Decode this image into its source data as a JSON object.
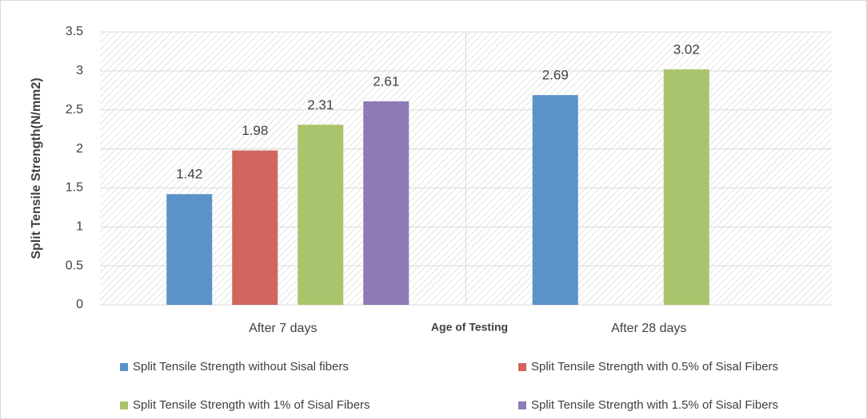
{
  "chart_data": {
    "type": "bar",
    "categories": [
      "After 7 days",
      "After 28 days"
    ],
    "series": [
      {
        "name": "Split Tensile Strength without Sisal fibers",
        "color": "#5b93c9",
        "values": [
          1.42,
          2.69
        ]
      },
      {
        "name": "Split Tensile Strength with 0.5% of Sisal Fibers",
        "color": "#d0665e",
        "values": [
          1.98,
          null
        ]
      },
      {
        "name": "Split Tensile Strength with 1% of Sisal Fibers",
        "color": "#a9c46c",
        "values": [
          2.31,
          3.02
        ]
      },
      {
        "name": "Split Tensile Strength with 1.5% of Sisal Fibers",
        "color": "#8e7ab5",
        "values": [
          2.61,
          null
        ]
      }
    ],
    "x_label": "Age of Testing",
    "y_label": "Split Tensile Strength(N/mm2)",
    "ylim": [
      0,
      3.5
    ],
    "yticks": [
      0,
      0.5,
      1,
      1.5,
      2,
      2.5,
      3,
      3.5
    ],
    "grid": true,
    "legend": "bottom"
  }
}
